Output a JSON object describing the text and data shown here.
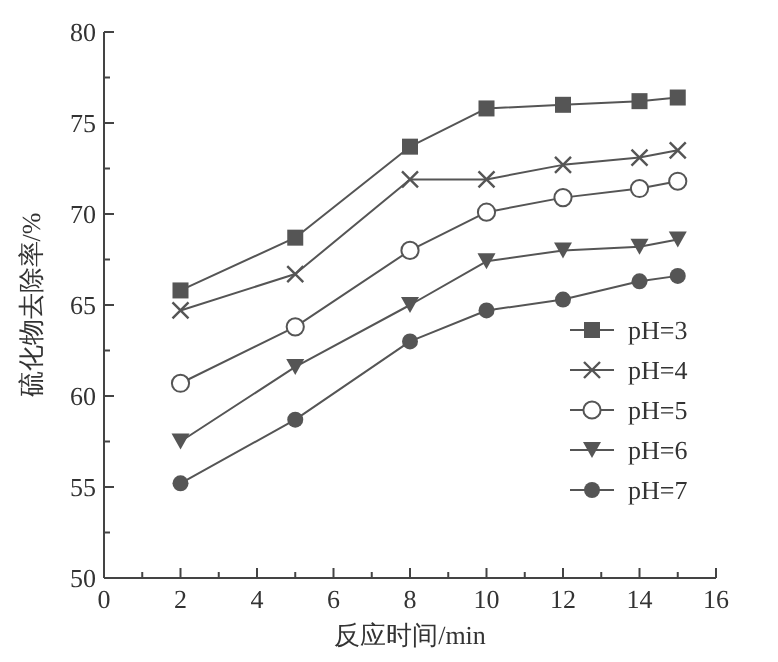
{
  "chart_data": {
    "type": "line",
    "xlabel": "反应时间/min",
    "ylabel": "硫化物去除率/%",
    "x": [
      2,
      5,
      8,
      10,
      12,
      14,
      15
    ],
    "xlim": [
      0,
      16
    ],
    "xticks": [
      0,
      2,
      4,
      6,
      8,
      10,
      12,
      14,
      16
    ],
    "ylim": [
      50,
      80
    ],
    "yticks": [
      50,
      55,
      60,
      65,
      70,
      75,
      80
    ],
    "legend": "right",
    "grid": false,
    "series": [
      {
        "name": "pH=3",
        "color": "#555555",
        "marker": "square",
        "values": [
          65.8,
          68.7,
          73.7,
          75.8,
          76.0,
          76.2,
          76.4
        ]
      },
      {
        "name": "pH=4",
        "color": "#555555",
        "marker": "cross",
        "values": [
          64.7,
          66.7,
          71.9,
          71.9,
          72.7,
          73.1,
          73.5
        ]
      },
      {
        "name": "pH=5",
        "color": "#555555",
        "marker": "circle-open",
        "values": [
          60.7,
          63.8,
          68.0,
          70.1,
          70.9,
          71.4,
          71.8
        ]
      },
      {
        "name": "pH=6",
        "color": "#555555",
        "marker": "triangle-down",
        "values": [
          57.5,
          61.6,
          65.0,
          67.4,
          68.0,
          68.2,
          68.6
        ]
      },
      {
        "name": "pH=7",
        "color": "#555555",
        "marker": "circle",
        "values": [
          55.2,
          58.7,
          63.0,
          64.7,
          65.3,
          66.3,
          66.6
        ]
      }
    ]
  }
}
